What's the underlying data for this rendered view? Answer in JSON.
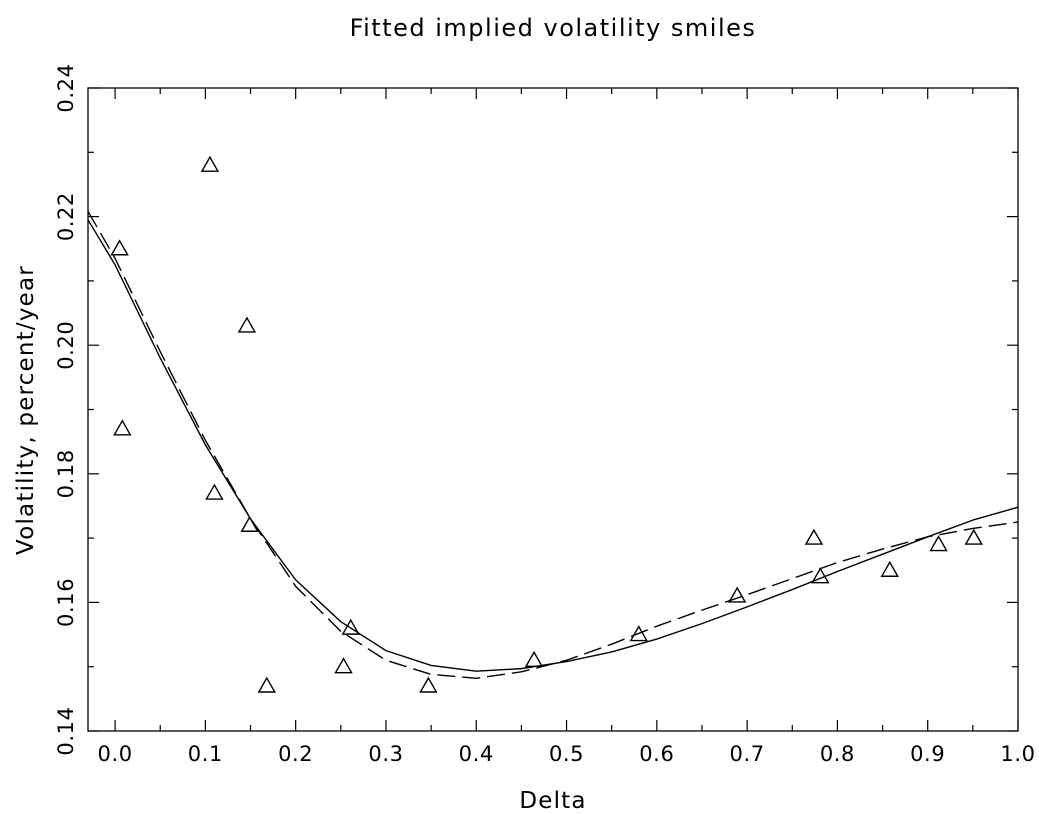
{
  "chart_data": {
    "type": "scatter",
    "title": "Fitted implied volatility smiles",
    "xlabel": "Delta",
    "ylabel": "Volatility, percent/year",
    "xlim": [
      -0.03,
      1.0
    ],
    "ylim": [
      0.14,
      0.24
    ],
    "xticks": [
      "0.0",
      "0.1",
      "0.2",
      "0.3",
      "0.4",
      "0.5",
      "0.6",
      "0.7",
      "0.8",
      "0.9",
      "1.0"
    ],
    "yticks": [
      "0.14",
      "0.16",
      "0.18",
      "0.20",
      "0.22",
      "0.24"
    ],
    "grid": false,
    "series": [
      {
        "style": "triangle-markers",
        "points": [
          [
            0.005,
            0.215
          ],
          [
            0.008,
            0.187
          ],
          [
            0.105,
            0.228
          ],
          [
            0.11,
            0.177
          ],
          [
            0.146,
            0.203
          ],
          [
            0.149,
            0.172
          ],
          [
            0.168,
            0.147
          ],
          [
            0.253,
            0.15
          ],
          [
            0.261,
            0.156
          ],
          [
            0.347,
            0.147
          ],
          [
            0.464,
            0.151
          ],
          [
            0.58,
            0.155
          ],
          [
            0.689,
            0.161
          ],
          [
            0.774,
            0.17
          ],
          [
            0.781,
            0.164
          ],
          [
            0.858,
            0.165
          ],
          [
            0.912,
            0.169
          ],
          [
            0.951,
            0.17
          ]
        ]
      },
      {
        "style": "solid-line",
        "points": [
          [
            -0.03,
            0.2195
          ],
          [
            0.0,
            0.2125
          ],
          [
            0.05,
            0.198
          ],
          [
            0.1,
            0.1845
          ],
          [
            0.15,
            0.173
          ],
          [
            0.2,
            0.1635
          ],
          [
            0.25,
            0.157
          ],
          [
            0.3,
            0.1525
          ],
          [
            0.35,
            0.1502
          ],
          [
            0.4,
            0.1493
          ],
          [
            0.45,
            0.1497
          ],
          [
            0.5,
            0.1508
          ],
          [
            0.55,
            0.1523
          ],
          [
            0.6,
            0.1543
          ],
          [
            0.65,
            0.1567
          ],
          [
            0.7,
            0.1593
          ],
          [
            0.75,
            0.162
          ],
          [
            0.8,
            0.1648
          ],
          [
            0.85,
            0.1675
          ],
          [
            0.9,
            0.1702
          ],
          [
            0.95,
            0.1728
          ],
          [
            1.0,
            0.1748
          ]
        ]
      },
      {
        "style": "dashed-line",
        "points": [
          [
            -0.03,
            0.2208
          ],
          [
            0.0,
            0.2135
          ],
          [
            0.05,
            0.199
          ],
          [
            0.1,
            0.1852
          ],
          [
            0.15,
            0.173
          ],
          [
            0.2,
            0.1625
          ],
          [
            0.25,
            0.1555
          ],
          [
            0.3,
            0.151
          ],
          [
            0.35,
            0.1488
          ],
          [
            0.4,
            0.1482
          ],
          [
            0.45,
            0.1492
          ],
          [
            0.5,
            0.151
          ],
          [
            0.55,
            0.1535
          ],
          [
            0.6,
            0.1563
          ],
          [
            0.65,
            0.1588
          ],
          [
            0.7,
            0.1612
          ],
          [
            0.75,
            0.1637
          ],
          [
            0.8,
            0.1662
          ],
          [
            0.85,
            0.1683
          ],
          [
            0.9,
            0.1702
          ],
          [
            0.95,
            0.1715
          ],
          [
            1.0,
            0.1725
          ]
        ]
      }
    ]
  }
}
